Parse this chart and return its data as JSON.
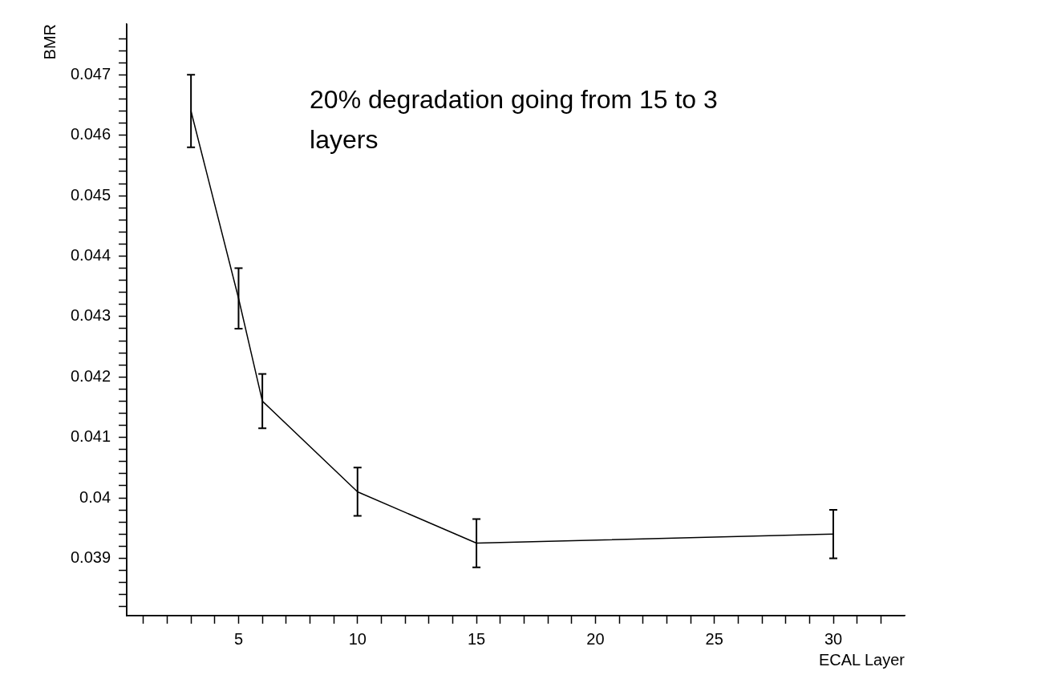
{
  "chart_data": {
    "type": "line",
    "xlabel": "ECAL Layer",
    "ylabel": "BMR",
    "annotations": [
      "20% degradation going from 15 to 3 layers"
    ],
    "x": [
      3,
      5,
      6,
      10,
      15,
      30
    ],
    "series": [
      {
        "color": "#000000",
        "values": [
          0.0464,
          0.0433,
          0.0416,
          0.0401,
          0.03925,
          0.0394
        ],
        "errors": [
          0.0006,
          0.0005,
          0.00045,
          0.0004,
          0.0004,
          0.0004
        ]
      }
    ],
    "xlim": [
      0.3,
      33
    ],
    "xticks": [
      {
        "value": 1,
        "label": null
      },
      {
        "value": 2,
        "label": null
      },
      {
        "value": 3,
        "label": null
      },
      {
        "value": 4,
        "label": null
      },
      5,
      {
        "value": 6,
        "label": null
      },
      {
        "value": 7,
        "label": null
      },
      {
        "value": 8,
        "label": null
      },
      {
        "value": 9,
        "label": null
      },
      10,
      {
        "value": 11,
        "label": null
      },
      {
        "value": 12,
        "label": null
      },
      {
        "value": 13,
        "label": null
      },
      {
        "value": 14,
        "label": null
      },
      15,
      {
        "value": 16,
        "label": null
      },
      {
        "value": 17,
        "label": null
      },
      {
        "value": 18,
        "label": null
      },
      {
        "value": 19,
        "label": null
      },
      20,
      {
        "value": 21,
        "label": null
      },
      {
        "value": 22,
        "label": null
      },
      {
        "value": 23,
        "label": null
      },
      {
        "value": 24,
        "label": null
      },
      25,
      {
        "value": 26,
        "label": null
      },
      {
        "value": 27,
        "label": null
      },
      {
        "value": 28,
        "label": null
      },
      {
        "value": 29,
        "label": null
      },
      30,
      {
        "value": 31,
        "label": null
      },
      {
        "value": 32,
        "label": null
      }
    ],
    "ylim": [
      0.03805,
      0.04784
    ],
    "yticks": [
      {
        "value": 0.0382,
        "label": null
      },
      {
        "value": 0.0384,
        "label": null
      },
      {
        "value": 0.0386,
        "label": null
      },
      {
        "value": 0.0388,
        "label": null
      },
      0.039,
      {
        "value": 0.0392,
        "label": null
      },
      {
        "value": 0.0394,
        "label": null
      },
      {
        "value": 0.0396,
        "label": null
      },
      {
        "value": 0.0398,
        "label": null
      },
      0.04,
      {
        "value": 0.0402,
        "label": null
      },
      {
        "value": 0.0404,
        "label": null
      },
      {
        "value": 0.0406,
        "label": null
      },
      {
        "value": 0.0408,
        "label": null
      },
      0.041,
      {
        "value": 0.0412,
        "label": null
      },
      {
        "value": 0.0414,
        "label": null
      },
      {
        "value": 0.0416,
        "label": null
      },
      {
        "value": 0.0418,
        "label": null
      },
      0.042,
      {
        "value": 0.0422,
        "label": null
      },
      {
        "value": 0.0424,
        "label": null
      },
      {
        "value": 0.0426,
        "label": null
      },
      {
        "value": 0.0428,
        "label": null
      },
      0.043,
      {
        "value": 0.0432,
        "label": null
      },
      {
        "value": 0.0434,
        "label": null
      },
      {
        "value": 0.0436,
        "label": null
      },
      {
        "value": 0.0438,
        "label": null
      },
      0.044,
      {
        "value": 0.0442,
        "label": null
      },
      {
        "value": 0.0444,
        "label": null
      },
      {
        "value": 0.0446,
        "label": null
      },
      {
        "value": 0.0448,
        "label": null
      },
      0.045,
      {
        "value": 0.0452,
        "label": null
      },
      {
        "value": 0.0454,
        "label": null
      },
      {
        "value": 0.0456,
        "label": null
      },
      {
        "value": 0.0458,
        "label": null
      },
      0.046,
      {
        "value": 0.0462,
        "label": null
      },
      {
        "value": 0.0464,
        "label": null
      },
      {
        "value": 0.0466,
        "label": null
      },
      {
        "value": 0.0468,
        "label": null
      },
      0.047,
      {
        "value": 0.0472,
        "label": null
      },
      {
        "value": 0.0474,
        "label": null
      },
      {
        "value": 0.0476,
        "label": null
      }
    ],
    "grid": false,
    "legend": false,
    "marker": "none",
    "line_style": "solid"
  }
}
